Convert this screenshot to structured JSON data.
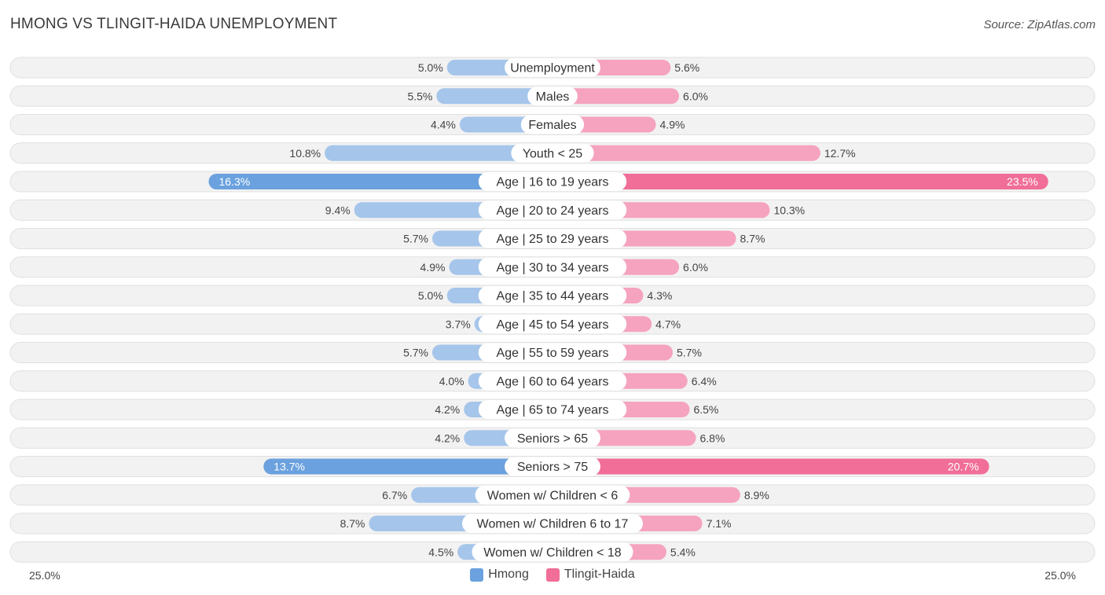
{
  "header": {
    "title": "HMONG VS TLINGIT-HAIDA UNEMPLOYMENT",
    "source": "Source: ZipAtlas.com"
  },
  "axis": {
    "left_label": "25.0%",
    "right_label": "25.0%"
  },
  "legend": {
    "left_label": "Hmong",
    "right_label": "Tlingit-Haida"
  },
  "colors": {
    "left_light": "#a5c5ea",
    "left_dark": "#6aa1de",
    "right_light": "#f5a3bf",
    "right_dark": "#f06e98",
    "row_bg": "#f2f2f2",
    "row_border": "#e0e0e0"
  },
  "chart_data": {
    "type": "bar",
    "orientation": "horizontal-diverging",
    "title": "HMONG VS TLINGIT-HAIDA UNEMPLOYMENT",
    "xlim": [
      0,
      25.0
    ],
    "categories": [
      "Unemployment",
      "Males",
      "Females",
      "Youth < 25",
      "Age | 16 to 19 years",
      "Age | 20 to 24 years",
      "Age | 25 to 29 years",
      "Age | 30 to 34 years",
      "Age | 35 to 44 years",
      "Age | 45 to 54 years",
      "Age | 55 to 59 years",
      "Age | 60 to 64 years",
      "Age | 65 to 74 years",
      "Seniors > 65",
      "Seniors > 75",
      "Women w/ Children < 6",
      "Women w/ Children 6 to 17",
      "Women w/ Children < 18"
    ],
    "series": [
      {
        "name": "Hmong",
        "values": [
          5.0,
          5.5,
          4.4,
          10.8,
          16.3,
          9.4,
          5.7,
          4.9,
          5.0,
          3.7,
          5.7,
          4.0,
          4.2,
          4.2,
          13.7,
          6.7,
          8.7,
          4.5
        ],
        "labels": [
          "5.0%",
          "5.5%",
          "4.4%",
          "10.8%",
          "16.3%",
          "9.4%",
          "5.7%",
          "4.9%",
          "5.0%",
          "3.7%",
          "5.7%",
          "4.0%",
          "4.2%",
          "4.2%",
          "13.7%",
          "6.7%",
          "8.7%",
          "4.5%"
        ]
      },
      {
        "name": "Tlingit-Haida",
        "values": [
          5.6,
          6.0,
          4.9,
          12.7,
          23.5,
          10.3,
          8.7,
          6.0,
          4.3,
          4.7,
          5.7,
          6.4,
          6.5,
          6.8,
          20.7,
          8.9,
          7.1,
          5.4
        ],
        "labels": [
          "5.6%",
          "6.0%",
          "4.9%",
          "12.7%",
          "23.5%",
          "10.3%",
          "8.7%",
          "6.0%",
          "4.3%",
          "4.7%",
          "5.7%",
          "6.4%",
          "6.5%",
          "6.8%",
          "20.7%",
          "8.9%",
          "7.1%",
          "5.4%"
        ]
      }
    ],
    "legend_position": "bottom-center"
  }
}
